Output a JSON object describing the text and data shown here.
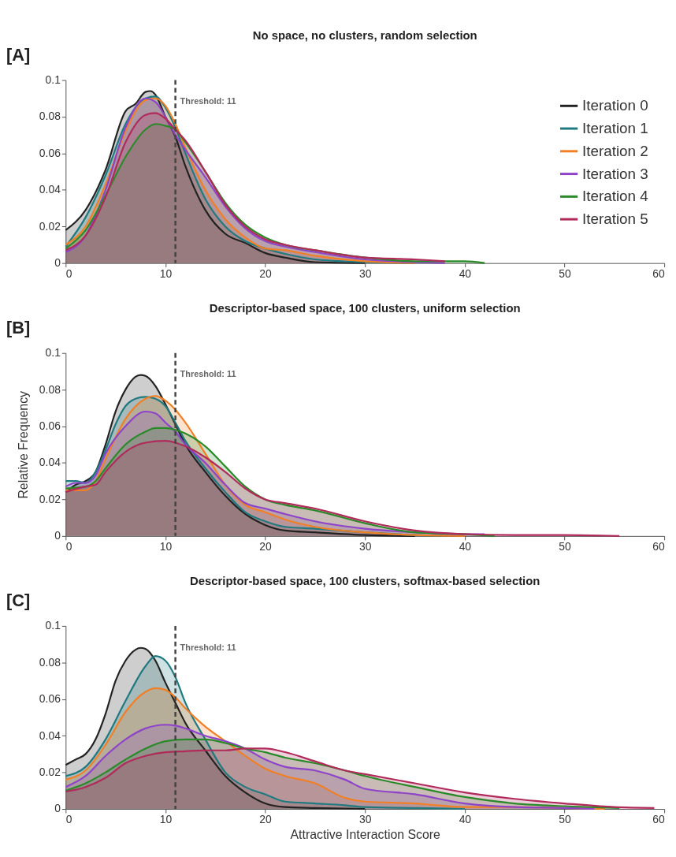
{
  "chart_data": [
    {
      "type": "area",
      "title": "No space, no clusters, random selection",
      "annotations": [
        "[A]"
      ],
      "xlim": [
        0,
        60
      ],
      "xticks": [
        0,
        10,
        20,
        30,
        40,
        50,
        60
      ],
      "ylim": [
        0,
        0.1
      ],
      "yticks": [
        0,
        0.02,
        0.04,
        0.06,
        0.08,
        0.1
      ],
      "grid": false,
      "legend": "top right",
      "ref_lines": [
        {
          "axis": "x",
          "value": 11,
          "label": "Threshold: 11",
          "color": "#444444",
          "line_style": "dashed"
        }
      ],
      "series": [
        {
          "name": "Iteration 0",
          "color": "#222222",
          "x": [
            0,
            2,
            4,
            6,
            7,
            8,
            8.5,
            9,
            10,
            11,
            12,
            14,
            16,
            18,
            20,
            22,
            25,
            30
          ],
          "values": [
            0.018,
            0.029,
            0.051,
            0.083,
            0.087,
            0.0935,
            0.094,
            0.092,
            0.08,
            0.069,
            0.053,
            0.029,
            0.016,
            0.011,
            0.0055,
            0.003,
            0.0005,
            0
          ]
        },
        {
          "name": "Iteration 1",
          "color": "#1f7a80",
          "x": [
            0,
            2,
            4,
            6,
            8,
            9,
            10,
            11,
            12,
            14,
            16,
            18,
            20,
            22,
            25,
            30,
            35
          ],
          "values": [
            0.009,
            0.025,
            0.048,
            0.076,
            0.09,
            0.091,
            0.085,
            0.074,
            0.06,
            0.035,
            0.02,
            0.012,
            0.008,
            0.005,
            0.002,
            0.0005,
            0
          ]
        },
        {
          "name": "Iteration 2",
          "color": "#f07f26",
          "x": [
            0,
            2,
            4,
            6,
            8,
            9,
            10,
            11,
            12,
            14,
            16,
            18,
            20,
            22,
            25,
            30,
            35
          ],
          "values": [
            0.01,
            0.02,
            0.043,
            0.072,
            0.089,
            0.09,
            0.086,
            0.076,
            0.063,
            0.04,
            0.024,
            0.014,
            0.008,
            0.007,
            0.004,
            0.001,
            0
          ]
        },
        {
          "name": "Iteration 3",
          "color": "#8e44c8",
          "x": [
            0,
            2,
            4,
            6,
            8,
            9,
            10,
            11,
            12,
            14,
            16,
            18,
            20,
            22,
            25,
            30,
            35,
            38
          ],
          "values": [
            0.006,
            0.015,
            0.04,
            0.074,
            0.09,
            0.088,
            0.08,
            0.07,
            0.062,
            0.047,
            0.031,
            0.019,
            0.012,
            0.009,
            0.006,
            0.002,
            0.0005,
            0
          ]
        },
        {
          "name": "Iteration 4",
          "color": "#2a8a2a",
          "x": [
            0,
            2,
            4,
            6,
            8,
            9,
            10,
            11,
            12,
            14,
            16,
            18,
            20,
            22,
            25,
            30,
            35,
            40,
            42
          ],
          "values": [
            0.008,
            0.018,
            0.037,
            0.058,
            0.073,
            0.076,
            0.075,
            0.073,
            0.066,
            0.05,
            0.033,
            0.021,
            0.014,
            0.01,
            0.007,
            0.003,
            0.001,
            0.001,
            0
          ]
        },
        {
          "name": "Iteration 5",
          "color": "#b02a5a",
          "x": [
            0,
            2,
            4,
            6,
            8,
            9,
            10,
            11,
            12,
            14,
            16,
            18,
            20,
            22,
            25,
            30,
            35,
            38
          ],
          "values": [
            0.007,
            0.015,
            0.036,
            0.066,
            0.081,
            0.082,
            0.079,
            0.073,
            0.067,
            0.05,
            0.032,
            0.02,
            0.013,
            0.01,
            0.007,
            0.003,
            0.002,
            0.001
          ]
        }
      ]
    },
    {
      "type": "area",
      "title": "Descriptor-based space, 100 clusters, uniform selection",
      "annotations": [
        "[B]"
      ],
      "ylabel": "Relative Frequency",
      "xlim": [
        0,
        60
      ],
      "xticks": [
        0,
        10,
        20,
        30,
        40,
        50,
        60
      ],
      "ylim": [
        0,
        0.1
      ],
      "yticks": [
        0,
        0.02,
        0.04,
        0.06,
        0.08,
        0.1
      ],
      "grid": false,
      "ref_lines": [
        {
          "axis": "x",
          "value": 11,
          "label": "Threshold: 11",
          "color": "#444444",
          "line_style": "dashed"
        }
      ],
      "series": [
        {
          "color": "#222222",
          "x": [
            0,
            1,
            2,
            3,
            4,
            5,
            6,
            7,
            7.5,
            8,
            9,
            10,
            11,
            12,
            14,
            16,
            18,
            20,
            22,
            25,
            30,
            35
          ],
          "values": [
            0.024,
            0.028,
            0.03,
            0.035,
            0.05,
            0.068,
            0.08,
            0.087,
            0.088,
            0.0875,
            0.082,
            0.072,
            0.061,
            0.05,
            0.035,
            0.022,
            0.012,
            0.006,
            0.003,
            0.002,
            0.0005,
            0
          ]
        },
        {
          "color": "#1f7a80",
          "x": [
            0,
            1,
            2,
            3,
            4,
            5,
            6,
            7,
            8,
            9,
            10,
            11,
            12,
            14,
            16,
            18,
            20,
            22,
            25,
            30,
            35,
            40
          ],
          "values": [
            0.03,
            0.03,
            0.029,
            0.035,
            0.047,
            0.061,
            0.071,
            0.075,
            0.076,
            0.075,
            0.071,
            0.062,
            0.052,
            0.037,
            0.024,
            0.013,
            0.008,
            0.005,
            0.004,
            0.002,
            0.0005,
            0
          ]
        },
        {
          "color": "#f07f26",
          "x": [
            0,
            2,
            3,
            4,
            6,
            8,
            9,
            10,
            11,
            12,
            14,
            16,
            18,
            20,
            22,
            25,
            30,
            35,
            40
          ],
          "values": [
            0.025,
            0.025,
            0.03,
            0.042,
            0.064,
            0.075,
            0.0765,
            0.074,
            0.069,
            0.062,
            0.045,
            0.028,
            0.017,
            0.013,
            0.009,
            0.005,
            0.002,
            0.0005,
            0
          ]
        },
        {
          "color": "#8e44c8",
          "x": [
            0,
            1,
            2,
            3,
            4,
            6,
            8,
            9,
            10,
            11,
            12,
            14,
            16,
            18,
            20,
            22,
            25,
            30,
            35,
            40,
            42
          ],
          "values": [
            0.027,
            0.029,
            0.029,
            0.033,
            0.045,
            0.06,
            0.068,
            0.067,
            0.062,
            0.057,
            0.05,
            0.04,
            0.028,
            0.018,
            0.015,
            0.012,
            0.008,
            0.004,
            0.002,
            0.001,
            0.001
          ]
        },
        {
          "color": "#2a8a2a",
          "x": [
            0,
            2,
            3,
            4,
            6,
            8,
            9,
            10,
            11,
            12,
            14,
            16,
            18,
            20,
            22,
            25,
            30,
            35,
            40,
            43
          ],
          "values": [
            0.026,
            0.027,
            0.03,
            0.037,
            0.05,
            0.057,
            0.059,
            0.059,
            0.058,
            0.056,
            0.049,
            0.038,
            0.027,
            0.02,
            0.017,
            0.014,
            0.007,
            0.002,
            0.001,
            0
          ]
        },
        {
          "color": "#b02a5a",
          "x": [
            0,
            2,
            3,
            4,
            6,
            8,
            10,
            11,
            12,
            14,
            16,
            18,
            20,
            22,
            25,
            30,
            35,
            40,
            45,
            50,
            55.5
          ],
          "values": [
            0.024,
            0.027,
            0.028,
            0.035,
            0.046,
            0.051,
            0.052,
            0.051,
            0.049,
            0.043,
            0.035,
            0.026,
            0.02,
            0.018,
            0.015,
            0.008,
            0.003,
            0.001,
            0.0005,
            0.0005,
            0
          ]
        }
      ]
    },
    {
      "type": "area",
      "title": "Descriptor-based space, 100 clusters, softmax-based selection",
      "annotations": [
        "[C]"
      ],
      "xlabel": "Attractive Interaction Score",
      "xlim": [
        0,
        60
      ],
      "xticks": [
        0,
        10,
        20,
        30,
        40,
        50,
        60
      ],
      "ylim": [
        0,
        0.1
      ],
      "yticks": [
        0,
        0.02,
        0.04,
        0.06,
        0.08,
        0.1
      ],
      "grid": false,
      "ref_lines": [
        {
          "axis": "x",
          "value": 11,
          "label": "Threshold: 11",
          "color": "#444444",
          "line_style": "dashed"
        }
      ],
      "series": [
        {
          "color": "#222222",
          "x": [
            0,
            1,
            2,
            3,
            4,
            5,
            6,
            7,
            7.5,
            8,
            9,
            10,
            11,
            12,
            14,
            16,
            18,
            20,
            22,
            25,
            30
          ],
          "values": [
            0.024,
            0.027,
            0.03,
            0.038,
            0.052,
            0.07,
            0.081,
            0.087,
            0.088,
            0.0875,
            0.081,
            0.069,
            0.058,
            0.047,
            0.032,
            0.018,
            0.009,
            0.003,
            0.001,
            0.0005,
            0
          ]
        },
        {
          "color": "#1f7a80",
          "x": [
            0,
            2,
            4,
            6,
            8,
            9,
            10,
            11,
            12,
            14,
            16,
            18,
            20,
            22,
            25,
            28,
            30,
            35,
            40
          ],
          "values": [
            0.018,
            0.023,
            0.038,
            0.059,
            0.078,
            0.0835,
            0.081,
            0.072,
            0.058,
            0.038,
            0.02,
            0.012,
            0.008,
            0.004,
            0.003,
            0.002,
            0.001,
            0.0005,
            0
          ]
        },
        {
          "color": "#f07f26",
          "x": [
            0,
            2,
            4,
            6,
            8,
            9,
            10,
            11,
            12,
            14,
            16,
            18,
            20,
            22,
            25,
            28,
            30,
            35,
            40,
            45,
            50,
            54
          ],
          "values": [
            0.016,
            0.021,
            0.035,
            0.053,
            0.064,
            0.066,
            0.065,
            0.061,
            0.055,
            0.045,
            0.037,
            0.029,
            0.022,
            0.018,
            0.014,
            0.006,
            0.004,
            0.003,
            0.001,
            0.001,
            0.0005,
            0
          ]
        },
        {
          "color": "#8e44c8",
          "x": [
            0,
            2,
            4,
            6,
            8,
            10,
            11,
            12,
            14,
            16,
            18,
            20,
            22,
            25,
            28,
            30,
            35,
            40,
            45,
            50,
            53
          ],
          "values": [
            0.012,
            0.018,
            0.029,
            0.038,
            0.044,
            0.046,
            0.0455,
            0.044,
            0.04,
            0.037,
            0.033,
            0.027,
            0.023,
            0.021,
            0.016,
            0.011,
            0.008,
            0.003,
            0.001,
            0.0005,
            0
          ]
        },
        {
          "color": "#2a8a2a",
          "x": [
            0,
            2,
            4,
            6,
            8,
            10,
            12,
            14,
            16,
            18,
            20,
            22,
            25,
            28,
            30,
            35,
            40,
            45,
            50,
            55.5
          ],
          "values": [
            0.01,
            0.014,
            0.02,
            0.027,
            0.033,
            0.037,
            0.038,
            0.038,
            0.036,
            0.033,
            0.031,
            0.028,
            0.025,
            0.021,
            0.018,
            0.012,
            0.0065,
            0.003,
            0.0015,
            0.0005
          ]
        },
        {
          "color": "#b02a5a",
          "x": [
            0,
            2,
            4,
            6,
            8,
            10,
            12,
            14,
            16,
            18,
            20,
            22,
            25,
            28,
            30,
            35,
            40,
            45,
            50,
            55,
            59
          ],
          "values": [
            0.0095,
            0.012,
            0.017,
            0.025,
            0.029,
            0.031,
            0.0315,
            0.032,
            0.032,
            0.033,
            0.033,
            0.031,
            0.026,
            0.021,
            0.019,
            0.014,
            0.009,
            0.0055,
            0.003,
            0.001,
            0.0005
          ]
        }
      ]
    }
  ]
}
